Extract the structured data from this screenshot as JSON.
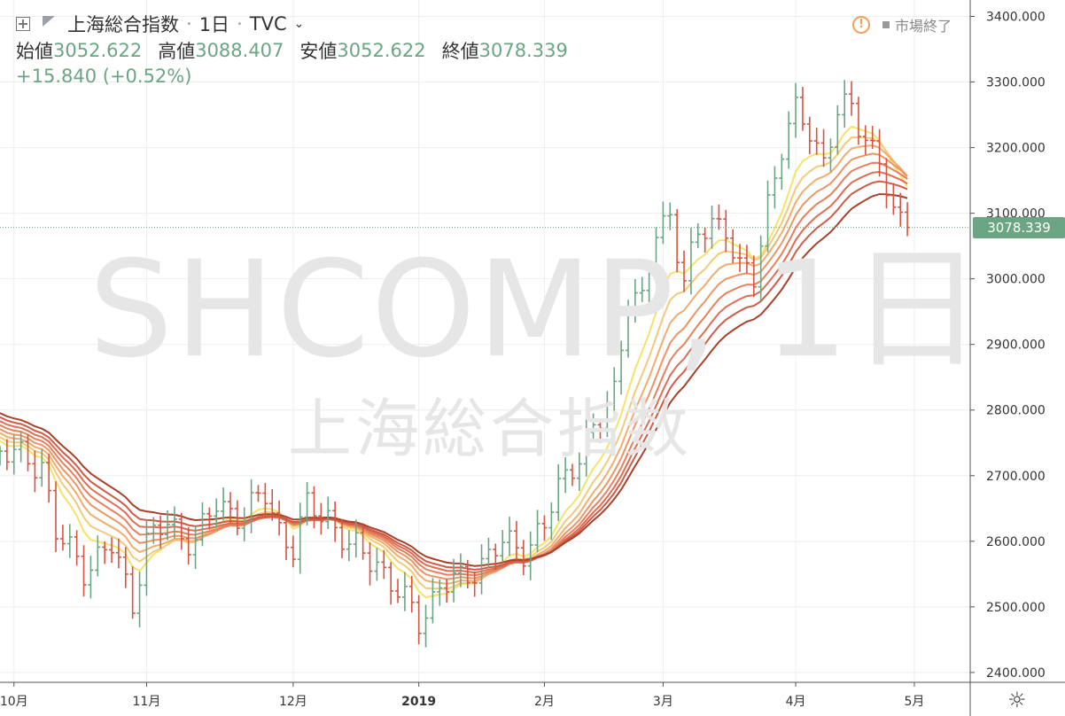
{
  "header": {
    "symbol_name": "上海総合指数",
    "interval": "1日",
    "exchange": "TVC",
    "open_label": "始値",
    "open_value": "3052.622",
    "high_label": "高値",
    "high_value": "3088.407",
    "low_label": "安値",
    "low_value": "3052.622",
    "close_label": "終値",
    "close_value": "3078.339",
    "change": "+15.840 (+0.52%)",
    "market_status": "市場終了"
  },
  "watermark": {
    "symbol": "SHCOMP, 1日",
    "name": "上海総合指数"
  },
  "colors": {
    "up": "#6ba583",
    "down": "#d75442",
    "grid": "#eeeeee",
    "axis_text": "#333333"
  },
  "icons": [
    "plus-square-icon",
    "flag-icon",
    "chevron-down-icon",
    "warning-icon",
    "settings-icon"
  ],
  "chart_data": {
    "type": "ohlc",
    "title": "上海総合指数",
    "last_price": "3078.339",
    "ylim": [
      2385,
      3425
    ],
    "y_ticks": [
      "2400.000",
      "2500.000",
      "2600.000",
      "2700.000",
      "2800.000",
      "2900.000",
      "3000.000",
      "3100.000",
      "3200.000",
      "3300.000",
      "3400.000"
    ],
    "x_ticks": [
      "10月",
      "11月",
      "12月",
      "2019",
      "2月",
      "3月",
      "4月",
      "5月"
    ],
    "x_tick_days": [
      0,
      19,
      40,
      58,
      76,
      93,
      112,
      129
    ],
    "x_last_day": 128,
    "x_range_days": [
      -2,
      137
    ],
    "anchors_close": [
      [
        -2,
        2735
      ],
      [
        4,
        2720
      ],
      [
        6,
        2610
      ],
      [
        10,
        2560
      ],
      [
        14,
        2590
      ],
      [
        17,
        2510
      ],
      [
        19,
        2600
      ],
      [
        22,
        2625
      ],
      [
        26,
        2600
      ],
      [
        29,
        2655
      ],
      [
        33,
        2640
      ],
      [
        36,
        2670
      ],
      [
        38,
        2620
      ],
      [
        40,
        2590
      ],
      [
        42,
        2650
      ],
      [
        45,
        2640
      ],
      [
        48,
        2590
      ],
      [
        52,
        2570
      ],
      [
        55,
        2520
      ],
      [
        58,
        2480
      ],
      [
        61,
        2530
      ],
      [
        64,
        2540
      ],
      [
        66,
        2560
      ],
      [
        70,
        2595
      ],
      [
        73,
        2590
      ],
      [
        76,
        2620
      ],
      [
        78,
        2680
      ],
      [
        80,
        2720
      ],
      [
        82,
        2750
      ],
      [
        84,
        2780
      ],
      [
        86,
        2830
      ],
      [
        88,
        2980
      ],
      [
        90,
        2960
      ],
      [
        92,
        3070
      ],
      [
        94,
        3100
      ],
      [
        96,
        3000
      ],
      [
        98,
        3060
      ],
      [
        100,
        3090
      ],
      [
        102,
        3080
      ],
      [
        104,
        3010
      ],
      [
        106,
        3000
      ],
      [
        108,
        3120
      ],
      [
        110,
        3200
      ],
      [
        112,
        3250
      ],
      [
        114,
        3230
      ],
      [
        116,
        3180
      ],
      [
        118,
        3250
      ],
      [
        120,
        3260
      ],
      [
        122,
        3220
      ],
      [
        124,
        3180
      ],
      [
        126,
        3090
      ],
      [
        128,
        3078.339
      ]
    ],
    "ma_periods": [
      8,
      11,
      14,
      17,
      20,
      23,
      26,
      30
    ],
    "ma_colors": [
      "#f5e26a",
      "#f4c97a",
      "#f0ad6e",
      "#ec9566",
      "#e6805d",
      "#df6c55",
      "#cf5a45",
      "#a8412a"
    ]
  }
}
